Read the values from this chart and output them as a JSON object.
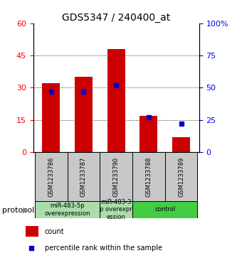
{
  "title": "GDS5347 / 240400_at",
  "samples": [
    "GSM1233786",
    "GSM1233787",
    "GSM1233790",
    "GSM1233788",
    "GSM1233789"
  ],
  "count_values": [
    32,
    35,
    48,
    17,
    7
  ],
  "percentile_values": [
    47,
    47,
    52,
    27,
    22
  ],
  "ylim_left": [
    0,
    60
  ],
  "ylim_right": [
    0,
    100
  ],
  "yticks_left": [
    0,
    15,
    30,
    45,
    60
  ],
  "yticks_right": [
    0,
    25,
    50,
    75,
    100
  ],
  "bar_color": "#cc0000",
  "marker_color": "#0000cc",
  "protocol_groups": [
    {
      "label": "miR-483-5p\noverexpression",
      "indices": [
        0,
        1
      ],
      "color": "#aaddaa"
    },
    {
      "label": "miR-483-3\np overexpr\nession",
      "indices": [
        2
      ],
      "color": "#aaddaa"
    },
    {
      "label": "control",
      "indices": [
        3,
        4
      ],
      "color": "#44cc44"
    }
  ],
  "legend_count_label": "count",
  "legend_percentile_label": "percentile rank within the sample",
  "protocol_label": "protocol",
  "bar_width": 0.55,
  "sample_area_color": "#c8c8c8",
  "bg_color": "#ffffff",
  "title_fontsize": 10,
  "axis_fontsize": 8,
  "sample_fontsize": 6,
  "proto_fontsize": 6,
  "legend_fontsize": 7
}
